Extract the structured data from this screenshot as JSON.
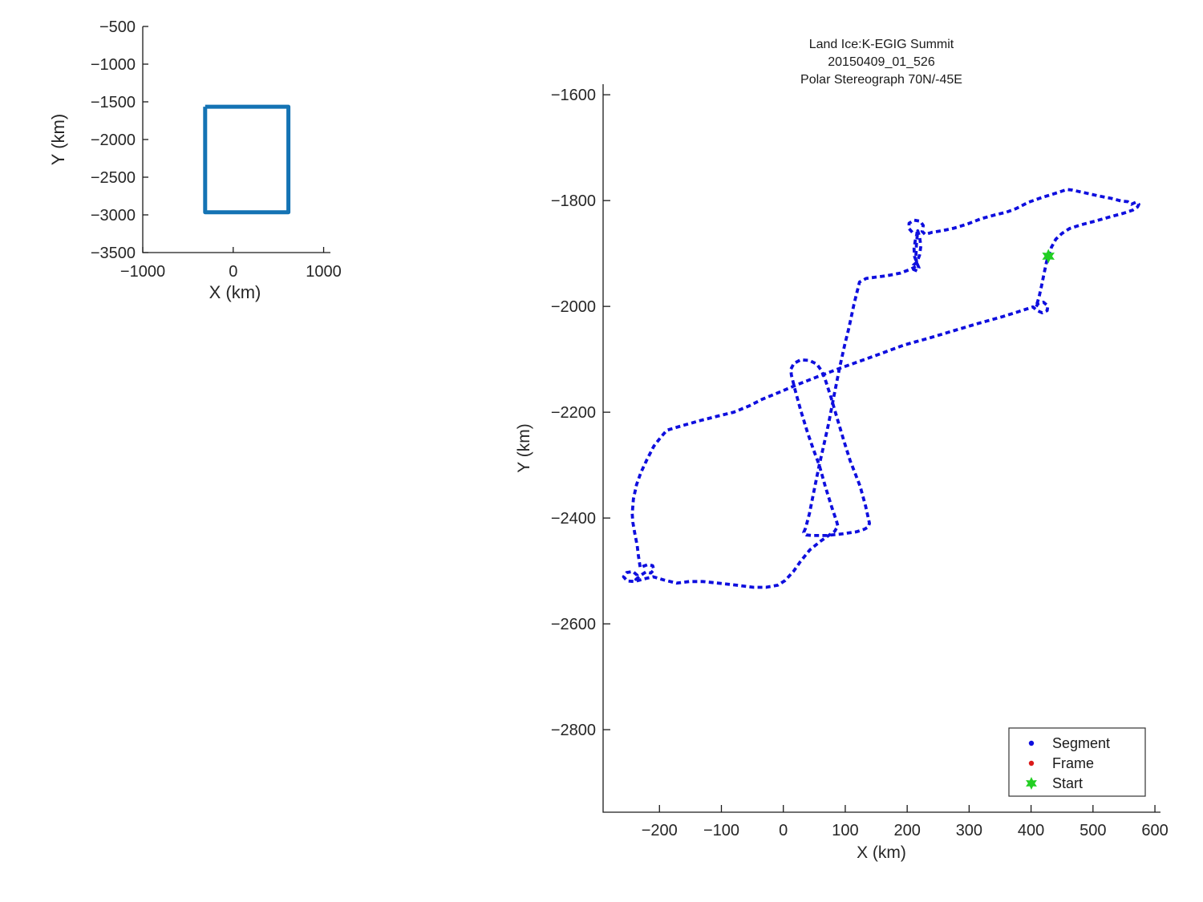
{
  "figure": {
    "background": "#ffffff",
    "axis_color": "#1a1a1a",
    "text_color": "#262626"
  },
  "chart_data": [
    {
      "id": "coverage-overview-inset",
      "type": "line",
      "title": "",
      "xlabel": "X (km)",
      "ylabel": "Y (km)",
      "xlim": [
        -1000,
        1075
      ],
      "ylim": [
        -3500,
        -500
      ],
      "grid": false,
      "xticks": [
        -1000,
        0,
        1000
      ],
      "xtick_labels": [
        "−1000",
        "0",
        "1000"
      ],
      "yticks": [
        -500,
        -1000,
        -1500,
        -2000,
        -2500,
        -3000,
        -3500
      ],
      "ytick_labels": [
        "−500",
        "−1000",
        "−1500",
        "−2000",
        "−2500",
        "−3000",
        "−3500"
      ],
      "series": [
        {
          "name": "coverage-box",
          "color": "#1473B4",
          "line_style": "solid",
          "line_width": 5,
          "points": [
            [
              -310,
              -1565
            ],
            [
              610,
              -1565
            ],
            [
              610,
              -2965
            ],
            [
              -310,
              -2965
            ],
            [
              -310,
              -1565
            ]
          ]
        }
      ]
    },
    {
      "id": "flight-track-main",
      "type": "line",
      "title_lines": [
        "Land Ice:K-EGIG Summit",
        "20150409_01_526",
        "Polar Stereograph 70N/-45E"
      ],
      "xlabel": "X (km)",
      "ylabel": "Y (km)",
      "xlim": [
        -291,
        609
      ],
      "ylim": [
        -2956,
        -1580
      ],
      "grid": false,
      "xticks": [
        -200,
        -100,
        0,
        100,
        200,
        300,
        400,
        500,
        600
      ],
      "xtick_labels": [
        "−200",
        "−100",
        "0",
        "100",
        "200",
        "300",
        "400",
        "500",
        "600"
      ],
      "yticks": [
        -1600,
        -1800,
        -2000,
        -2200,
        -2400,
        -2600,
        -2800
      ],
      "ytick_labels": [
        "−1600",
        "−1800",
        "−2000",
        "−2200",
        "−2400",
        "−2600",
        "−2800"
      ],
      "legend": {
        "position": "lower right",
        "items": [
          {
            "label": "Segment",
            "marker": "dot",
            "color": "#0E0EDE"
          },
          {
            "label": "Frame",
            "marker": "dot",
            "color": "#DB1A1A"
          },
          {
            "label": "Start",
            "marker": "hexagram",
            "color": "#22CF22"
          }
        ]
      },
      "series": [
        {
          "name": "Segment",
          "color": "#0E0EDE",
          "line_style": "dotted",
          "line_width": 3.8,
          "points": [
            [
              428,
              -1905
            ],
            [
              433,
              -1888
            ],
            [
              440,
              -1873
            ],
            [
              450,
              -1862
            ],
            [
              462,
              -1853
            ],
            [
              480,
              -1846
            ],
            [
              503,
              -1839
            ],
            [
              527,
              -1831
            ],
            [
              549,
              -1824
            ],
            [
              564,
              -1818
            ],
            [
              572,
              -1812
            ],
            [
              574,
              -1807
            ],
            [
              569,
              -1803
            ],
            [
              562,
              -1807
            ],
            [
              556,
              -1802
            ],
            [
              546,
              -1801
            ],
            [
              530,
              -1796
            ],
            [
              508,
              -1791
            ],
            [
              486,
              -1785
            ],
            [
              466,
              -1780
            ],
            [
              458,
              -1779
            ],
            [
              440,
              -1786
            ],
            [
              418,
              -1794
            ],
            [
              396,
              -1803
            ],
            [
              376,
              -1815
            ],
            [
              360,
              -1822
            ],
            [
              342,
              -1827
            ],
            [
              320,
              -1834
            ],
            [
              298,
              -1844
            ],
            [
              276,
              -1852
            ],
            [
              256,
              -1857
            ],
            [
              240,
              -1860
            ],
            [
              229,
              -1864
            ],
            [
              224,
              -1858
            ],
            [
              226,
              -1847
            ],
            [
              221,
              -1839
            ],
            [
              211,
              -1837
            ],
            [
              203,
              -1843
            ],
            [
              203,
              -1853
            ],
            [
              209,
              -1861
            ],
            [
              216,
              -1862
            ],
            [
              213,
              -1876
            ],
            [
              211,
              -1891
            ],
            [
              212,
              -1906
            ],
            [
              216,
              -1919
            ],
            [
              219,
              -1927
            ],
            [
              216,
              -1933
            ],
            [
              210,
              -1930
            ],
            [
              210,
              -1922
            ],
            [
              216,
              -1916
            ],
            [
              220,
              -1903
            ],
            [
              222,
              -1886
            ],
            [
              220,
              -1868
            ],
            [
              217,
              -1857
            ],
            [
              215,
              -1882
            ],
            [
              214,
              -1906
            ],
            [
              216,
              -1923
            ],
            [
              207,
              -1929
            ],
            [
              189,
              -1937
            ],
            [
              167,
              -1942
            ],
            [
              147,
              -1945
            ],
            [
              134,
              -1947
            ],
            [
              123,
              -1954
            ],
            [
              114,
              -1996
            ],
            [
              106,
              -2040
            ],
            [
              99,
              -2073
            ],
            [
              91,
              -2115
            ],
            [
              82,
              -2168
            ],
            [
              73,
              -2222
            ],
            [
              65,
              -2264
            ],
            [
              58,
              -2300
            ],
            [
              50,
              -2346
            ],
            [
              42,
              -2392
            ],
            [
              36,
              -2419
            ],
            [
              33,
              -2427
            ],
            [
              37,
              -2432
            ],
            [
              46,
              -2433
            ],
            [
              70,
              -2433
            ],
            [
              95,
              -2430
            ],
            [
              118,
              -2426
            ],
            [
              131,
              -2421
            ],
            [
              137,
              -2417
            ],
            [
              139,
              -2410
            ],
            [
              133,
              -2378
            ],
            [
              124,
              -2340
            ],
            [
              114,
              -2310
            ],
            [
              108,
              -2292
            ],
            [
              98,
              -2255
            ],
            [
              87,
              -2212
            ],
            [
              77,
              -2172
            ],
            [
              69,
              -2143
            ],
            [
              66,
              -2133
            ],
            [
              62,
              -2122
            ],
            [
              54,
              -2109
            ],
            [
              42,
              -2102
            ],
            [
              28,
              -2101
            ],
            [
              17,
              -2108
            ],
            [
              12,
              -2119
            ],
            [
              13,
              -2130
            ],
            [
              19,
              -2158
            ],
            [
              28,
              -2196
            ],
            [
              39,
              -2238
            ],
            [
              49,
              -2272
            ],
            [
              58,
              -2300
            ],
            [
              68,
              -2341
            ],
            [
              78,
              -2379
            ],
            [
              86,
              -2406
            ],
            [
              88,
              -2415
            ],
            [
              83,
              -2425
            ],
            [
              73,
              -2433
            ],
            [
              60,
              -2444
            ],
            [
              43,
              -2460
            ],
            [
              27,
              -2483
            ],
            [
              17,
              -2500
            ],
            [
              3,
              -2518
            ],
            [
              -9,
              -2527
            ],
            [
              -28,
              -2531
            ],
            [
              -48,
              -2531
            ],
            [
              -75,
              -2527
            ],
            [
              -105,
              -2523
            ],
            [
              -130,
              -2520
            ],
            [
              -152,
              -2520
            ],
            [
              -172,
              -2523
            ],
            [
              -193,
              -2517
            ],
            [
              -210,
              -2511
            ],
            [
              -225,
              -2515
            ],
            [
              -240,
              -2520
            ],
            [
              -252,
              -2519
            ],
            [
              -258,
              -2511
            ],
            [
              -253,
              -2503
            ],
            [
              -243,
              -2501
            ],
            [
              -236,
              -2508
            ],
            [
              -238,
              -2516
            ],
            [
              -230,
              -2508
            ],
            [
              -222,
              -2502
            ],
            [
              -214,
              -2504
            ],
            [
              -209,
              -2498
            ],
            [
              -211,
              -2490
            ],
            [
              -219,
              -2488
            ],
            [
              -226,
              -2491
            ],
            [
              -231,
              -2494
            ],
            [
              -234,
              -2471
            ],
            [
              -236,
              -2452
            ],
            [
              -240,
              -2428
            ],
            [
              -243,
              -2408
            ],
            [
              -244,
              -2392
            ],
            [
              -242,
              -2364
            ],
            [
              -237,
              -2337
            ],
            [
              -230,
              -2314
            ],
            [
              -220,
              -2289
            ],
            [
              -209,
              -2264
            ],
            [
              -197,
              -2246
            ],
            [
              -188,
              -2234
            ],
            [
              -162,
              -2225
            ],
            [
              -135,
              -2216
            ],
            [
              -108,
              -2208
            ],
            [
              -80,
              -2200
            ],
            [
              -55,
              -2188
            ],
            [
              -35,
              -2176
            ],
            [
              -8,
              -2163
            ],
            [
              20,
              -2149
            ],
            [
              55,
              -2133
            ],
            [
              91,
              -2117
            ],
            [
              125,
              -2103
            ],
            [
              158,
              -2089
            ],
            [
              195,
              -2073
            ],
            [
              235,
              -2060
            ],
            [
              275,
              -2046
            ],
            [
              315,
              -2032
            ],
            [
              355,
              -2019
            ],
            [
              385,
              -2008
            ],
            [
              403,
              -2001
            ],
            [
              410,
              -2008
            ],
            [
              418,
              -2012
            ],
            [
              426,
              -2008
            ],
            [
              427,
              -1999
            ],
            [
              420,
              -1992
            ],
            [
              411,
              -1995
            ],
            [
              408,
              -2001
            ],
            [
              413,
              -1982
            ],
            [
              417,
              -1961
            ],
            [
              421,
              -1938
            ],
            [
              425,
              -1916
            ],
            [
              428,
              -1905
            ]
          ]
        },
        {
          "name": "Frame",
          "color": "#DB1A1A",
          "line_style": "dotted",
          "line_width": 3.8,
          "points": []
        },
        {
          "name": "Start",
          "color": "#22CF22",
          "marker": "hexagram",
          "marker_size": 9,
          "points": [
            [
              428,
              -1905
            ]
          ]
        }
      ]
    }
  ]
}
